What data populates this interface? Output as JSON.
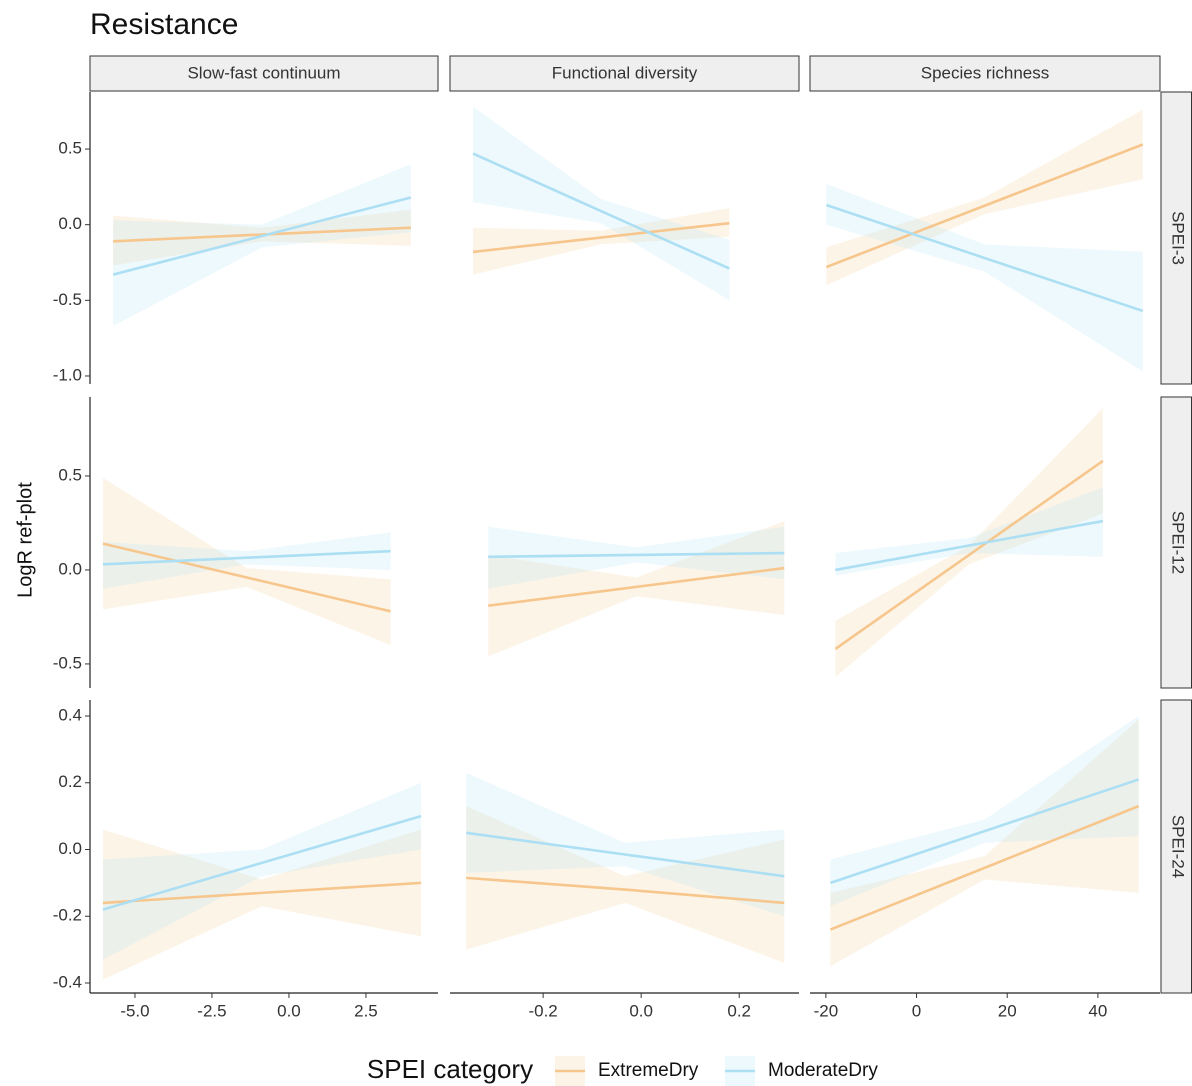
{
  "chart_data": {
    "type": "line",
    "title": "Resistance",
    "y_label": "LogR ref-plot",
    "legend_title": "SPEI category",
    "series": [
      {
        "name": "ExtremeDry",
        "color": "#f6c68d"
      },
      {
        "name": "ModerateDry",
        "color": "#acdff3"
      }
    ],
    "columns": [
      {
        "label": "Slow-fast continuum",
        "xlim": [
          -6.46,
          4.84
        ],
        "xticks": [
          {
            "value": -5,
            "label": "-5.0"
          },
          -2.5,
          {
            "value": 0,
            "label": "0.0"
          },
          2.5
        ]
      },
      {
        "label": "Functional diversity",
        "xlim": [
          -0.39,
          0.322
        ],
        "xticks": [
          -0.2,
          {
            "value": 0,
            "label": "0.0"
          },
          0.2
        ]
      },
      {
        "label": "Species richness",
        "xlim": [
          -23.5,
          53.7
        ],
        "xticks": [
          -20,
          0,
          20,
          40
        ]
      }
    ],
    "rows": [
      {
        "label": "SPEI-3",
        "ylim": [
          -1.053,
          0.877
        ],
        "yticks": [
          0.5,
          {
            "value": 0,
            "label": "0.0"
          },
          -0.5,
          {
            "value": -1,
            "label": "-1.0"
          }
        ]
      },
      {
        "label": "SPEI-12",
        "ylim": [
          -0.628,
          0.92
        ],
        "yticks": [
          0.5,
          {
            "value": 0,
            "label": "0.0"
          },
          -0.5
        ]
      },
      {
        "label": "SPEI-24",
        "ylim": [
          -0.43,
          0.448
        ],
        "yticks": [
          0.4,
          0.2,
          {
            "value": 0,
            "label": "0.0"
          },
          -0.2,
          -0.4
        ]
      }
    ],
    "panels": [
      {
        "x": [
          -5.71,
          -0.88,
          3.96
        ],
        "lines": [
          {
            "values": [
              -0.11,
              -0.065,
              -0.02
            ],
            "lower": [
              -0.27,
              -0.11,
              -0.14
            ],
            "upper": [
              0.06,
              -0.02,
              0.1
            ]
          },
          {
            "values": [
              -0.33,
              -0.075,
              0.18
            ],
            "lower": [
              -0.67,
              -0.15,
              -0.05
            ],
            "upper": [
              0.03,
              0.0,
              0.4
            ]
          }
        ]
      },
      {
        "x": [
          -0.343,
          -0.082,
          0.18
        ],
        "lines": [
          {
            "values": [
              -0.18,
              -0.085,
              0.01
            ],
            "lower": [
              -0.33,
              -0.13,
              -0.08
            ],
            "upper": [
              -0.02,
              -0.04,
              0.11
            ]
          },
          {
            "values": [
              0.47,
              0.09,
              -0.29
            ],
            "lower": [
              0.15,
              0.01,
              -0.5
            ],
            "upper": [
              0.78,
              0.17,
              -0.1
            ]
          }
        ]
      },
      {
        "x": [
          -19.9,
          15,
          49.9
        ],
        "lines": [
          {
            "values": [
              -0.28,
              0.125,
              0.53
            ],
            "lower": [
              -0.4,
              0.07,
              0.3
            ],
            "upper": [
              -0.15,
              0.18,
              0.76
            ]
          },
          {
            "values": [
              0.13,
              -0.22,
              -0.57
            ],
            "lower": [
              0.0,
              -0.31,
              -0.97
            ],
            "upper": [
              0.27,
              -0.13,
              -0.18
            ]
          }
        ]
      },
      {
        "x": [
          -6.04,
          -1.37,
          3.3
        ],
        "lines": [
          {
            "values": [
              0.14,
              -0.04,
              -0.22
            ],
            "lower": [
              -0.21,
              -0.09,
              -0.4
            ],
            "upper": [
              0.49,
              0.01,
              -0.05
            ]
          },
          {
            "values": [
              0.03,
              0.065,
              0.1
            ],
            "lower": [
              -0.1,
              0.03,
              0.0
            ],
            "upper": [
              0.15,
              0.1,
              0.2
            ]
          }
        ]
      },
      {
        "x": [
          -0.312,
          -0.01,
          0.292
        ],
        "lines": [
          {
            "values": [
              -0.19,
              -0.09,
              0.01
            ],
            "lower": [
              -0.46,
              -0.14,
              -0.24
            ],
            "upper": [
              0.08,
              -0.04,
              0.26
            ]
          },
          {
            "values": [
              0.07,
              0.08,
              0.09
            ],
            "lower": [
              -0.1,
              0.04,
              -0.05
            ],
            "upper": [
              0.23,
              0.12,
              0.23
            ]
          }
        ]
      },
      {
        "x": [
          -17.9,
          11.6,
          41.1
        ],
        "lines": [
          {
            "values": [
              -0.42,
              0.08,
              0.58
            ],
            "lower": [
              -0.57,
              0.03,
              0.3
            ],
            "upper": [
              -0.27,
              0.13,
              0.86
            ]
          },
          {
            "values": [
              0.0,
              0.13,
              0.26
            ],
            "lower": [
              -0.03,
              0.09,
              0.07
            ],
            "upper": [
              0.09,
              0.17,
              0.44
            ]
          }
        ]
      },
      {
        "x": [
          -6.04,
          -0.88,
          4.29
        ],
        "lines": [
          {
            "values": [
              -0.16,
              -0.13,
              -0.1
            ],
            "lower": [
              -0.39,
              -0.17,
              -0.26
            ],
            "upper": [
              0.06,
              -0.09,
              0.06
            ]
          },
          {
            "values": [
              -0.18,
              -0.04,
              0.1
            ],
            "lower": [
              -0.33,
              -0.08,
              0.0
            ],
            "upper": [
              -0.03,
              0.0,
              0.2
            ]
          }
        ]
      },
      {
        "x": [
          -0.357,
          -0.033,
          0.292
        ],
        "lines": [
          {
            "values": [
              -0.085,
              -0.12,
              -0.16
            ],
            "lower": [
              -0.3,
              -0.16,
              -0.34
            ],
            "upper": [
              0.13,
              -0.08,
              0.03
            ]
          },
          {
            "values": [
              0.05,
              -0.015,
              -0.08
            ],
            "lower": [
              -0.07,
              -0.05,
              -0.2
            ],
            "upper": [
              0.23,
              0.02,
              0.06
            ]
          }
        ]
      },
      {
        "x": [
          -19,
          15,
          49
        ],
        "lines": [
          {
            "values": [
              -0.24,
              -0.055,
              0.13
            ],
            "lower": [
              -0.35,
              -0.09,
              -0.13
            ],
            "upper": [
              -0.13,
              -0.02,
              0.39
            ]
          },
          {
            "values": [
              -0.1,
              0.055,
              0.21
            ],
            "lower": [
              -0.17,
              0.02,
              0.04
            ],
            "upper": [
              -0.03,
              0.09,
              0.4
            ]
          }
        ]
      }
    ]
  }
}
